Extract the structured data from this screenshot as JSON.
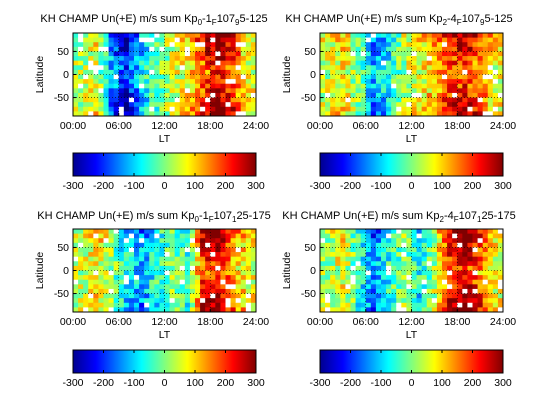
{
  "chart_data": [
    {
      "type": "heatmap",
      "title": {
        "main": "KH CHAMP Un(+E) m/s sum Kp",
        "kp_lo": "0",
        "kp_mid": "-1",
        "kp_hi": "",
        "f": "F",
        "rest": "107",
        "rsub": "9",
        "tail": "5-125"
      },
      "xlabel": "LT",
      "ylabel": "Latitude",
      "xticks": [
        "00:00",
        "06:00",
        "12:00",
        "18:00",
        "24:00"
      ],
      "xlim": [
        0,
        24
      ],
      "yticks": [
        "50",
        "0",
        "-50"
      ],
      "ylim": [
        -90,
        90
      ],
      "colorbar": {
        "ticks": [
          "-300",
          "-200",
          "-100",
          "0",
          "100",
          "200",
          "300"
        ],
        "range": [
          -300,
          300
        ]
      },
      "pattern": [
        {
          "lt": 1,
          "v": 20
        },
        {
          "lt": 3,
          "v": 60
        },
        {
          "lt": 5,
          "v": -120
        },
        {
          "lt": 7,
          "v": -220
        },
        {
          "lt": 9,
          "v": -90
        },
        {
          "lt": 11,
          "v": -30
        },
        {
          "lt": 13,
          "v": 40
        },
        {
          "lt": 15,
          "v": 90
        },
        {
          "lt": 17,
          "v": 170
        },
        {
          "lt": 19,
          "v": 260
        },
        {
          "lt": 21,
          "v": 180
        },
        {
          "lt": 23,
          "v": 60
        }
      ]
    },
    {
      "type": "heatmap",
      "title": {
        "main": "KH CHAMP Un(+E) m/s sum Kp",
        "kp_lo": "2",
        "kp_mid": "-4",
        "kp_hi": "",
        "f": "F",
        "rest": "107",
        "rsub": "9",
        "tail": "5-125"
      },
      "xlabel": "LT",
      "ylabel": "Latitude",
      "xticks": [
        "00:00",
        "06:00",
        "12:00",
        "18:00",
        "24:00"
      ],
      "xlim": [
        0,
        24
      ],
      "yticks": [
        "50",
        "0",
        "-50"
      ],
      "ylim": [
        -90,
        90
      ],
      "colorbar": {
        "ticks": [
          "-300",
          "-200",
          "-100",
          "0",
          "100",
          "200",
          "300"
        ],
        "range": [
          -300,
          300
        ]
      },
      "pattern": [
        {
          "lt": 1,
          "v": 40
        },
        {
          "lt": 3,
          "v": 80
        },
        {
          "lt": 5,
          "v": 10
        },
        {
          "lt": 7,
          "v": -120
        },
        {
          "lt": 9,
          "v": -80
        },
        {
          "lt": 11,
          "v": 30
        },
        {
          "lt": 13,
          "v": 70
        },
        {
          "lt": 15,
          "v": 110
        },
        {
          "lt": 17,
          "v": 180
        },
        {
          "lt": 19,
          "v": 220
        },
        {
          "lt": 21,
          "v": 150
        },
        {
          "lt": 23,
          "v": 60
        }
      ]
    },
    {
      "type": "heatmap",
      "title": {
        "main": "KH CHAMP Un(+E) m/s sum Kp",
        "kp_lo": "0",
        "kp_mid": "-1",
        "kp_hi": "",
        "f": "F",
        "rest": "107",
        "rsub": "1",
        "tail": "25-175"
      },
      "xlabel": "LT",
      "ylabel": "Latitude",
      "xticks": [
        "00:00",
        "06:00",
        "12:00",
        "18:00",
        "24:00"
      ],
      "xlim": [
        0,
        24
      ],
      "yticks": [
        "50",
        "0",
        "-50"
      ],
      "ylim": [
        -90,
        90
      ],
      "colorbar": {
        "ticks": [
          "-300",
          "-200",
          "-100",
          "0",
          "100",
          "200",
          "300"
        ],
        "range": [
          -300,
          300
        ]
      },
      "pattern": [
        {
          "lt": 1,
          "v": 30
        },
        {
          "lt": 3,
          "v": 90
        },
        {
          "lt": 5,
          "v": 20
        },
        {
          "lt": 7,
          "v": -80
        },
        {
          "lt": 9,
          "v": -120
        },
        {
          "lt": 11,
          "v": -60
        },
        {
          "lt": 13,
          "v": 10
        },
        {
          "lt": 15,
          "v": -40
        },
        {
          "lt": 17,
          "v": 190
        },
        {
          "lt": 19,
          "v": 240
        },
        {
          "lt": 21,
          "v": 130
        },
        {
          "lt": 23,
          "v": 70
        }
      ]
    },
    {
      "type": "heatmap",
      "title": {
        "main": "KH CHAMP Un(+E) m/s sum Kp",
        "kp_lo": "2",
        "kp_mid": "-4",
        "kp_hi": "",
        "f": "F",
        "rest": "107",
        "rsub": "1",
        "tail": "25-175"
      },
      "xlabel": "LT",
      "ylabel": "Latitude",
      "xticks": [
        "00:00",
        "06:00",
        "12:00",
        "18:00",
        "24:00"
      ],
      "xlim": [
        0,
        24
      ],
      "yticks": [
        "50",
        "0",
        "-50"
      ],
      "ylim": [
        -90,
        90
      ],
      "colorbar": {
        "ticks": [
          "-300",
          "-200",
          "-100",
          "0",
          "100",
          "200",
          "300"
        ],
        "range": [
          -300,
          300
        ]
      },
      "pattern": [
        {
          "lt": 1,
          "v": 20
        },
        {
          "lt": 3,
          "v": 70
        },
        {
          "lt": 5,
          "v": -40
        },
        {
          "lt": 7,
          "v": -140
        },
        {
          "lt": 9,
          "v": -60
        },
        {
          "lt": 11,
          "v": 10
        },
        {
          "lt": 13,
          "v": -70
        },
        {
          "lt": 15,
          "v": 30
        },
        {
          "lt": 17,
          "v": 200
        },
        {
          "lt": 19,
          "v": 270
        },
        {
          "lt": 21,
          "v": 160
        },
        {
          "lt": 23,
          "v": 60
        }
      ]
    }
  ]
}
